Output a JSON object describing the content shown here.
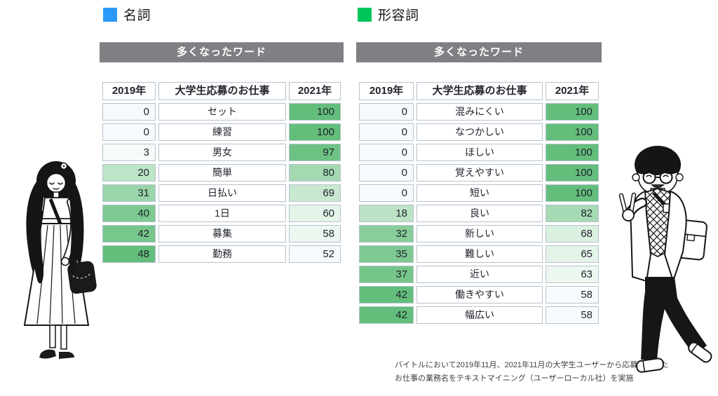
{
  "chart_data": [
    {
      "type": "table",
      "title": "多くなったワード",
      "legend": {
        "label": "名詞",
        "color": "#2b9bf7"
      },
      "columns": [
        "2019年",
        "大学生応募のお仕事",
        "2021年"
      ],
      "rows": [
        [
          0,
          "セット",
          100
        ],
        [
          0,
          "練習",
          100
        ],
        [
          3,
          "男女",
          97
        ],
        [
          20,
          "簡単",
          80
        ],
        [
          31,
          "日払い",
          69
        ],
        [
          40,
          "1日",
          60
        ],
        [
          42,
          "募集",
          58
        ],
        [
          48,
          "勤務",
          52
        ]
      ],
      "heatmap_note": "numeric columns shaded per-column: min=white, max=green"
    },
    {
      "type": "table",
      "title": "多くなったワード",
      "legend": {
        "label": "形容詞",
        "color": "#00c65a"
      },
      "columns": [
        "2019年",
        "大学生応募のお仕事",
        "2021年"
      ],
      "rows": [
        [
          0,
          "混みにくい",
          100
        ],
        [
          0,
          "なつかしい",
          100
        ],
        [
          0,
          "ほしい",
          100
        ],
        [
          0,
          "覚えやすい",
          100
        ],
        [
          0,
          "短い",
          100
        ],
        [
          18,
          "良い",
          82
        ],
        [
          32,
          "新しい",
          68
        ],
        [
          35,
          "難しい",
          65
        ],
        [
          37,
          "近い",
          63
        ],
        [
          42,
          "働きやすい",
          58
        ],
        [
          42,
          "幅広い",
          58
        ]
      ]
    }
  ],
  "footnote": {
    "line1": "バイトルにおいて2019年11月、2021年11月の大学生ユーザーから応募のあった",
    "line2": "お仕事の業務名をテキストマイニング（ユーザーローカル社）を実施"
  },
  "colors": {
    "heat_max": "#63be7b",
    "heat_zero": "#f7fafc",
    "bar_gray": "#7f8083"
  }
}
